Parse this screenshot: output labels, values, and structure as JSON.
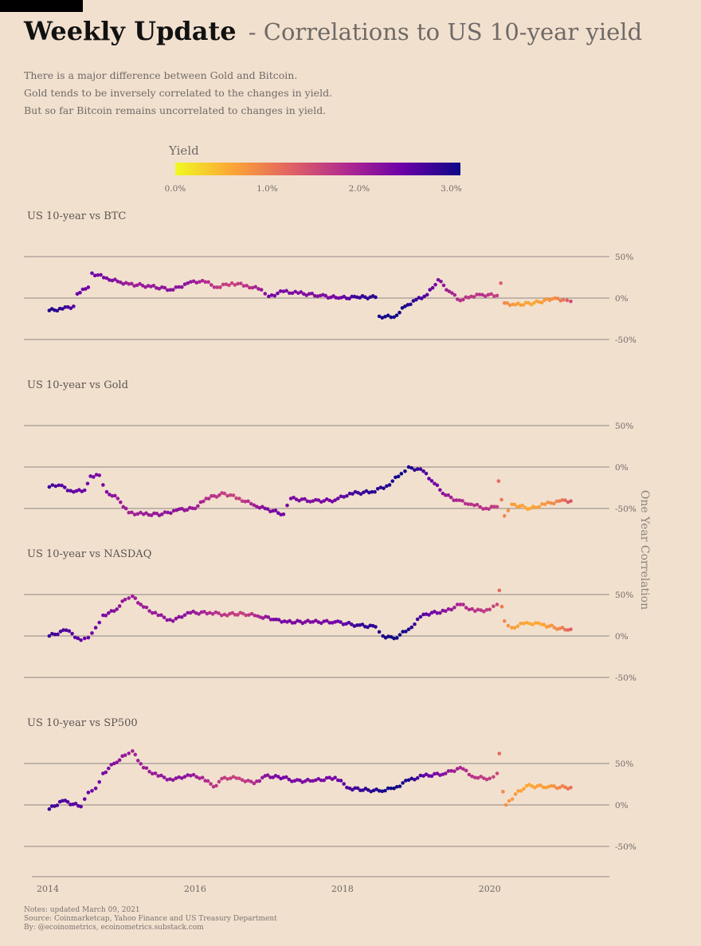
{
  "header": {
    "title": "Weekly Update",
    "subtitle": "- Correlations to US 10-year yield"
  },
  "description": [
    "There is a major difference between Gold and Bitcoin.",
    "Gold tends to be inversely correlated to the changes in yield.",
    "But so far Bitcoin remains uncorrelated to changes in yield."
  ],
  "legend": {
    "title": "Yield",
    "ticks": [
      "0.0%",
      "1.0%",
      "2.0%",
      "3.0%"
    ],
    "tick_values": [
      0,
      1,
      2,
      3
    ],
    "range": [
      0,
      3.1
    ],
    "gradient": [
      "#f0f921",
      "#fca636",
      "#e16462",
      "#b12a90",
      "#6a00a8",
      "#0d0887"
    ]
  },
  "y_axis_title": "One Year Correlation",
  "notes": [
    "Notes: updated March 09, 2021",
    "Source: Coinmarketcap, Yahoo Finance and US Treasury Department",
    "By: @ecoinometrics, ecoinometrics.substack.com"
  ],
  "chart_data": [
    {
      "type": "scatter",
      "title": "US 10-year vs BTC",
      "ylim": [
        -50,
        50
      ],
      "yticks": [
        "50%",
        "0%",
        "-50%"
      ],
      "ytick_values": [
        50,
        0,
        -50
      ],
      "xlim": [
        2014,
        2021.3
      ],
      "color_by": "yield",
      "points": [
        [
          2014.02,
          -15,
          3.0
        ],
        [
          2014.2,
          -13,
          2.85
        ],
        [
          2014.35,
          -10,
          2.6
        ],
        [
          2014.4,
          5,
          2.5
        ],
        [
          2014.55,
          13,
          2.4
        ],
        [
          2014.6,
          30,
          2.45
        ],
        [
          2014.8,
          24,
          2.35
        ],
        [
          2014.95,
          20,
          2.2
        ],
        [
          2015.1,
          17,
          2.0
        ],
        [
          2015.4,
          14,
          2.1
        ],
        [
          2015.7,
          10,
          2.2
        ],
        [
          2015.9,
          18,
          2.2
        ],
        [
          2016.1,
          21,
          1.9
        ],
        [
          2016.3,
          13,
          1.7
        ],
        [
          2016.5,
          18,
          1.6
        ],
        [
          2016.7,
          15,
          1.75
        ],
        [
          2016.9,
          10,
          2.1
        ],
        [
          2017.0,
          2,
          2.4
        ],
        [
          2017.2,
          8,
          2.35
        ],
        [
          2017.4,
          6,
          2.3
        ],
        [
          2017.7,
          3,
          2.25
        ],
        [
          2017.95,
          0,
          2.4
        ],
        [
          2018.2,
          1,
          2.8
        ],
        [
          2018.45,
          1,
          2.9
        ],
        [
          2018.5,
          -22,
          3.0
        ],
        [
          2018.7,
          -23,
          3.1
        ],
        [
          2018.85,
          -10,
          3.05
        ],
        [
          2019.0,
          -2,
          2.8
        ],
        [
          2019.15,
          4,
          2.6
        ],
        [
          2019.3,
          22,
          2.3
        ],
        [
          2019.45,
          8,
          2.0
        ],
        [
          2019.6,
          -3,
          1.8
        ],
        [
          2019.75,
          2,
          1.7
        ],
        [
          2019.9,
          4,
          1.8
        ],
        [
          2020.1,
          3,
          1.6
        ],
        [
          2020.15,
          18,
          1.3
        ],
        [
          2020.2,
          -6,
          0.9
        ],
        [
          2020.35,
          -8,
          0.7
        ],
        [
          2020.6,
          -6,
          0.6
        ],
        [
          2020.85,
          -1,
          0.8
        ],
        [
          2021.0,
          -2,
          1.1
        ],
        [
          2021.1,
          -4,
          1.5
        ]
      ]
    },
    {
      "type": "scatter",
      "title": "US 10-year vs Gold",
      "ylim": [
        -50,
        50
      ],
      "yticks": [
        "50%",
        "0%",
        "-50%"
      ],
      "ytick_values": [
        50,
        0,
        -50
      ],
      "xlim": [
        2014,
        2021.3
      ],
      "color_by": "yield",
      "points": [
        [
          2014.02,
          -24,
          2.8
        ],
        [
          2014.15,
          -22,
          2.65
        ],
        [
          2014.35,
          -30,
          2.55
        ],
        [
          2014.5,
          -28,
          2.45
        ],
        [
          2014.58,
          -11,
          2.4
        ],
        [
          2014.7,
          -10,
          2.35
        ],
        [
          2014.8,
          -30,
          2.3
        ],
        [
          2014.95,
          -38,
          2.1
        ],
        [
          2015.1,
          -55,
          2.0
        ],
        [
          2015.3,
          -57,
          2.05
        ],
        [
          2015.55,
          -57,
          2.15
        ],
        [
          2015.75,
          -52,
          2.2
        ],
        [
          2016.0,
          -50,
          2.05
        ],
        [
          2016.15,
          -38,
          1.85
        ],
        [
          2016.4,
          -32,
          1.65
        ],
        [
          2016.6,
          -38,
          1.6
        ],
        [
          2016.8,
          -46,
          2.0
        ],
        [
          2016.95,
          -50,
          2.3
        ],
        [
          2017.2,
          -57,
          2.4
        ],
        [
          2017.3,
          -38,
          2.35
        ],
        [
          2017.6,
          -41,
          2.3
        ],
        [
          2017.9,
          -40,
          2.4
        ],
        [
          2018.1,
          -32,
          2.7
        ],
        [
          2018.4,
          -30,
          2.9
        ],
        [
          2018.6,
          -23,
          2.95
        ],
        [
          2018.8,
          -8,
          3.1
        ],
        [
          2018.9,
          0,
          3.05
        ],
        [
          2019.1,
          -5,
          2.7
        ],
        [
          2019.25,
          -20,
          2.4
        ],
        [
          2019.4,
          -34,
          2.1
        ],
        [
          2019.55,
          -40,
          1.9
        ],
        [
          2019.75,
          -45,
          1.75
        ],
        [
          2019.95,
          -50,
          1.8
        ],
        [
          2020.1,
          -48,
          1.6
        ],
        [
          2020.12,
          -17,
          1.2
        ],
        [
          2020.2,
          -59,
          0.9
        ],
        [
          2020.3,
          -45,
          0.7
        ],
        [
          2020.55,
          -50,
          0.6
        ],
        [
          2020.75,
          -45,
          0.75
        ],
        [
          2020.95,
          -41,
          1.0
        ],
        [
          2021.1,
          -41,
          1.4
        ]
      ]
    },
    {
      "type": "scatter",
      "title": "US 10-year vs NASDAQ",
      "ylim": [
        -50,
        50
      ],
      "yticks": [
        "50%",
        "0%",
        "-50%"
      ],
      "ytick_values": [
        50,
        0,
        -50
      ],
      "xlim": [
        2014,
        2021.3
      ],
      "color_by": "yield",
      "points": [
        [
          2014.02,
          0,
          2.8
        ],
        [
          2014.25,
          7,
          2.65
        ],
        [
          2014.45,
          -5,
          2.55
        ],
        [
          2014.55,
          -2,
          2.5
        ],
        [
          2014.65,
          10,
          2.45
        ],
        [
          2014.75,
          25,
          2.35
        ],
        [
          2014.9,
          30,
          2.25
        ],
        [
          2015.05,
          44,
          2.1
        ],
        [
          2015.15,
          48,
          2.0
        ],
        [
          2015.3,
          35,
          2.05
        ],
        [
          2015.5,
          25,
          2.1
        ],
        [
          2015.7,
          18,
          2.2
        ],
        [
          2015.9,
          28,
          2.2
        ],
        [
          2016.2,
          28,
          1.85
        ],
        [
          2016.4,
          26,
          1.7
        ],
        [
          2016.65,
          27,
          1.6
        ],
        [
          2016.85,
          24,
          1.9
        ],
        [
          2017.1,
          20,
          2.4
        ],
        [
          2017.25,
          17,
          2.35
        ],
        [
          2017.6,
          17,
          2.3
        ],
        [
          2017.9,
          17,
          2.4
        ],
        [
          2018.2,
          13,
          2.8
        ],
        [
          2018.45,
          11,
          2.9
        ],
        [
          2018.55,
          0,
          3.0
        ],
        [
          2018.7,
          -3,
          3.1
        ],
        [
          2018.9,
          8,
          3.0
        ],
        [
          2019.1,
          26,
          2.6
        ],
        [
          2019.4,
          30,
          2.2
        ],
        [
          2019.6,
          38,
          1.9
        ],
        [
          2019.8,
          30,
          1.8
        ],
        [
          2020.0,
          32,
          1.65
        ],
        [
          2020.1,
          38,
          1.5
        ],
        [
          2020.13,
          55,
          1.2
        ],
        [
          2020.2,
          18,
          0.9
        ],
        [
          2020.3,
          10,
          0.7
        ],
        [
          2020.5,
          16,
          0.6
        ],
        [
          2020.7,
          14,
          0.6
        ],
        [
          2020.95,
          9,
          0.9
        ],
        [
          2021.1,
          8,
          1.3
        ]
      ]
    },
    {
      "type": "scatter",
      "title": "US 10-year vs SP500",
      "ylim": [
        -50,
        50
      ],
      "yticks": [
        "50%",
        "0%",
        "-50%"
      ],
      "ytick_values": [
        50,
        0,
        -50
      ],
      "xlim": [
        2014,
        2021.3
      ],
      "color_by": "yield",
      "points": [
        [
          2014.02,
          -5,
          2.8
        ],
        [
          2014.2,
          5,
          2.65
        ],
        [
          2014.45,
          -2,
          2.55
        ],
        [
          2014.55,
          15,
          2.5
        ],
        [
          2014.65,
          20,
          2.45
        ],
        [
          2014.75,
          38,
          2.35
        ],
        [
          2014.9,
          50,
          2.25
        ],
        [
          2015.05,
          60,
          2.1
        ],
        [
          2015.15,
          65,
          2.0
        ],
        [
          2015.3,
          45,
          2.05
        ],
        [
          2015.5,
          35,
          2.1
        ],
        [
          2015.7,
          30,
          2.2
        ],
        [
          2015.9,
          36,
          2.2
        ],
        [
          2016.1,
          33,
          1.9
        ],
        [
          2016.25,
          22,
          1.75
        ],
        [
          2016.4,
          33,
          1.65
        ],
        [
          2016.6,
          32,
          1.6
        ],
        [
          2016.8,
          26,
          1.85
        ],
        [
          2016.95,
          35,
          2.2
        ],
        [
          2017.2,
          33,
          2.4
        ],
        [
          2017.35,
          29,
          2.35
        ],
        [
          2017.6,
          29,
          2.3
        ],
        [
          2017.9,
          33,
          2.4
        ],
        [
          2018.1,
          20,
          2.7
        ],
        [
          2018.35,
          18,
          2.9
        ],
        [
          2018.5,
          17,
          3.0
        ],
        [
          2018.7,
          20,
          3.1
        ],
        [
          2018.9,
          30,
          3.0
        ],
        [
          2019.1,
          35,
          2.6
        ],
        [
          2019.4,
          38,
          2.2
        ],
        [
          2019.6,
          45,
          1.9
        ],
        [
          2019.8,
          33,
          1.75
        ],
        [
          2020.0,
          32,
          1.65
        ],
        [
          2020.1,
          38,
          1.5
        ],
        [
          2020.13,
          62,
          1.2
        ],
        [
          2020.18,
          16,
          0.9
        ],
        [
          2020.22,
          0,
          0.8
        ],
        [
          2020.35,
          13,
          0.7
        ],
        [
          2020.5,
          23,
          0.6
        ],
        [
          2020.8,
          22,
          0.7
        ],
        [
          2021.1,
          21,
          1.1
        ]
      ]
    }
  ],
  "x_axis": {
    "ticks": [
      "2014",
      "2016",
      "2018",
      "2020"
    ],
    "tick_values": [
      2014,
      2016,
      2018,
      2020
    ]
  }
}
